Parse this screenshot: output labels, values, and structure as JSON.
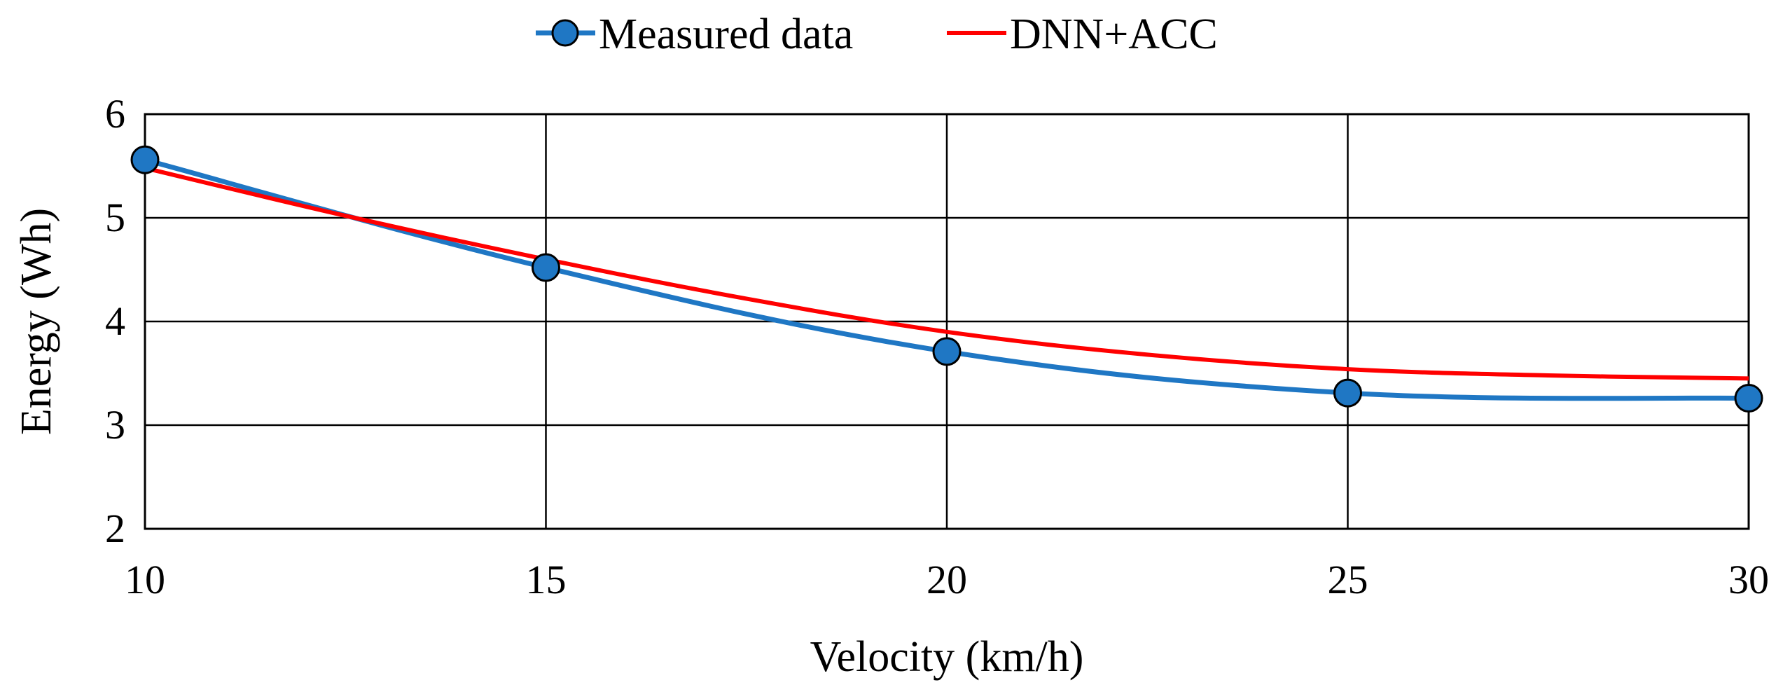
{
  "chart_data": {
    "type": "line",
    "title": "",
    "xlabel": "Velocity (km/h)",
    "ylabel": "Energy (Wh)",
    "xlim": [
      10,
      30
    ],
    "ylim": [
      2,
      6
    ],
    "xticks": [
      10,
      15,
      20,
      25,
      30
    ],
    "yticks": [
      2,
      3,
      4,
      5,
      6
    ],
    "xtick_labels": [
      "10",
      "15",
      "20",
      "25",
      "30"
    ],
    "ytick_labels": [
      "2",
      "3",
      "4",
      "5",
      "6"
    ],
    "grid": true,
    "legend_position": "top-center",
    "series": [
      {
        "name": "Measured data",
        "color": "#1f77c4",
        "marker": "circle",
        "x": [
          10,
          15,
          20,
          25,
          30
        ],
        "y": [
          5.56,
          4.52,
          3.71,
          3.31,
          3.26
        ]
      },
      {
        "name": "DNN+ACC",
        "color": "#ff0000",
        "marker": "none",
        "x": [
          10,
          12.5,
          15,
          17.5,
          20,
          22.5,
          25,
          27.5,
          30
        ],
        "y": [
          5.48,
          5.02,
          4.6,
          4.22,
          3.9,
          3.68,
          3.54,
          3.48,
          3.45
        ]
      }
    ]
  }
}
